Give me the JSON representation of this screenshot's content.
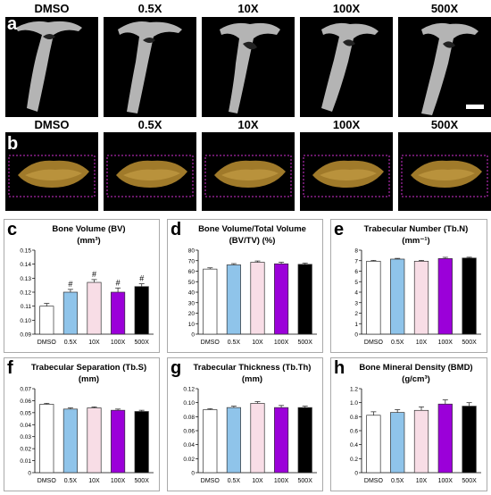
{
  "figure": {
    "row_a": {
      "letter": "a",
      "treatments": [
        "DMSO",
        "0.5X",
        "10X",
        "100X",
        "500X"
      ]
    },
    "row_b": {
      "letter": "b",
      "treatments": [
        "DMSO",
        "0.5X",
        "10X",
        "100X",
        "500X"
      ]
    },
    "colors": {
      "DMSO": "#ffffff",
      "0.5X": "#8fc4ea",
      "10X": "#f8dde6",
      "100X": "#9b00d9",
      "500X": "#000000",
      "bone_gray": "#c8c8c8",
      "bone_gold": "#a07a2a",
      "box_magenta": "#d030d0"
    }
  },
  "chart_data": [
    {
      "letter": "c",
      "type": "bar",
      "title": "Bone Volume (BV)",
      "subtitle": "(mm³)",
      "categories": [
        "DMSO",
        "0.5X",
        "10X",
        "100X",
        "500X"
      ],
      "values": [
        0.11,
        0.12,
        0.127,
        0.12,
        0.124
      ],
      "errors": [
        0.002,
        0.002,
        0.002,
        0.003,
        0.002
      ],
      "annotations": [
        "",
        "#",
        "#",
        "#",
        "#"
      ],
      "ylim": [
        0.09,
        0.15
      ],
      "yticks": [
        "0.09",
        "0.10",
        "0.11",
        "0.12",
        "0.13",
        "0.14",
        "0.15"
      ]
    },
    {
      "letter": "d",
      "type": "bar",
      "title": "Bone Volume/Total Volume",
      "subtitle": "(BV/TV) (%)",
      "categories": [
        "DMSO",
        "0.5X",
        "10X",
        "100X",
        "500X"
      ],
      "values": [
        62,
        66,
        68.5,
        67,
        66.5
      ],
      "errors": [
        1.2,
        1.2,
        1.2,
        1.5,
        1.2
      ],
      "annotations": [
        "",
        "",
        "",
        "",
        ""
      ],
      "ylim": [
        0,
        80
      ],
      "yticks": [
        "0",
        "10",
        "20",
        "30",
        "40",
        "50",
        "60",
        "70",
        "80"
      ]
    },
    {
      "letter": "e",
      "type": "bar",
      "title": "Trabecular Number (Tb.N)",
      "subtitle": "(mm⁻¹)",
      "categories": [
        "DMSO",
        "0.5X",
        "10X",
        "100X",
        "500X"
      ],
      "values": [
        6.95,
        7.15,
        6.95,
        7.2,
        7.25
      ],
      "errors": [
        0.08,
        0.07,
        0.08,
        0.12,
        0.08
      ],
      "annotations": [
        "",
        "",
        "",
        "",
        ""
      ],
      "ylim": [
        0,
        8
      ],
      "yticks": [
        "0",
        "1",
        "2",
        "3",
        "4",
        "5",
        "6",
        "7",
        "8"
      ]
    },
    {
      "letter": "f",
      "type": "bar",
      "title": "Trabecular Separation (Tb.S)",
      "subtitle": "(mm)",
      "categories": [
        "DMSO",
        "0.5X",
        "10X",
        "100X",
        "500X"
      ],
      "values": [
        0.057,
        0.053,
        0.054,
        0.052,
        0.051
      ],
      "errors": [
        0.0008,
        0.001,
        0.0008,
        0.001,
        0.001
      ],
      "annotations": [
        "",
        "",
        "",
        "",
        ""
      ],
      "ylim": [
        0,
        0.07
      ],
      "yticks": [
        "0",
        "0.01",
        "0.02",
        "0.03",
        "0.04",
        "0.05",
        "0.06",
        "0.07"
      ]
    },
    {
      "letter": "g",
      "type": "bar",
      "title": "Trabecular Thickness (Tb.Th)",
      "subtitle": "(mm)",
      "categories": [
        "DMSO",
        "0.5X",
        "10X",
        "100X",
        "500X"
      ],
      "values": [
        0.09,
        0.093,
        0.099,
        0.093,
        0.093
      ],
      "errors": [
        0.0015,
        0.002,
        0.0025,
        0.003,
        0.002
      ],
      "annotations": [
        "",
        "",
        "",
        "",
        ""
      ],
      "ylim": [
        0,
        0.12
      ],
      "yticks": [
        "0",
        "0.02",
        "0.04",
        "0.06",
        "0.08",
        "0.10",
        "0.12"
      ]
    },
    {
      "letter": "h",
      "type": "bar",
      "title": "Bone Mineral Density (BMD)",
      "subtitle": "(g/cm³)",
      "categories": [
        "DMSO",
        "0.5X",
        "10X",
        "100X",
        "500X"
      ],
      "values": [
        0.82,
        0.86,
        0.89,
        0.98,
        0.95
      ],
      "errors": [
        0.05,
        0.04,
        0.05,
        0.06,
        0.05
      ],
      "annotations": [
        "",
        "",
        "",
        "",
        ""
      ],
      "ylim": [
        0,
        1.2
      ],
      "yticks": [
        "0",
        "0.2",
        "0.4",
        "0.6",
        "0.8",
        "1.0",
        "1.2"
      ]
    }
  ]
}
